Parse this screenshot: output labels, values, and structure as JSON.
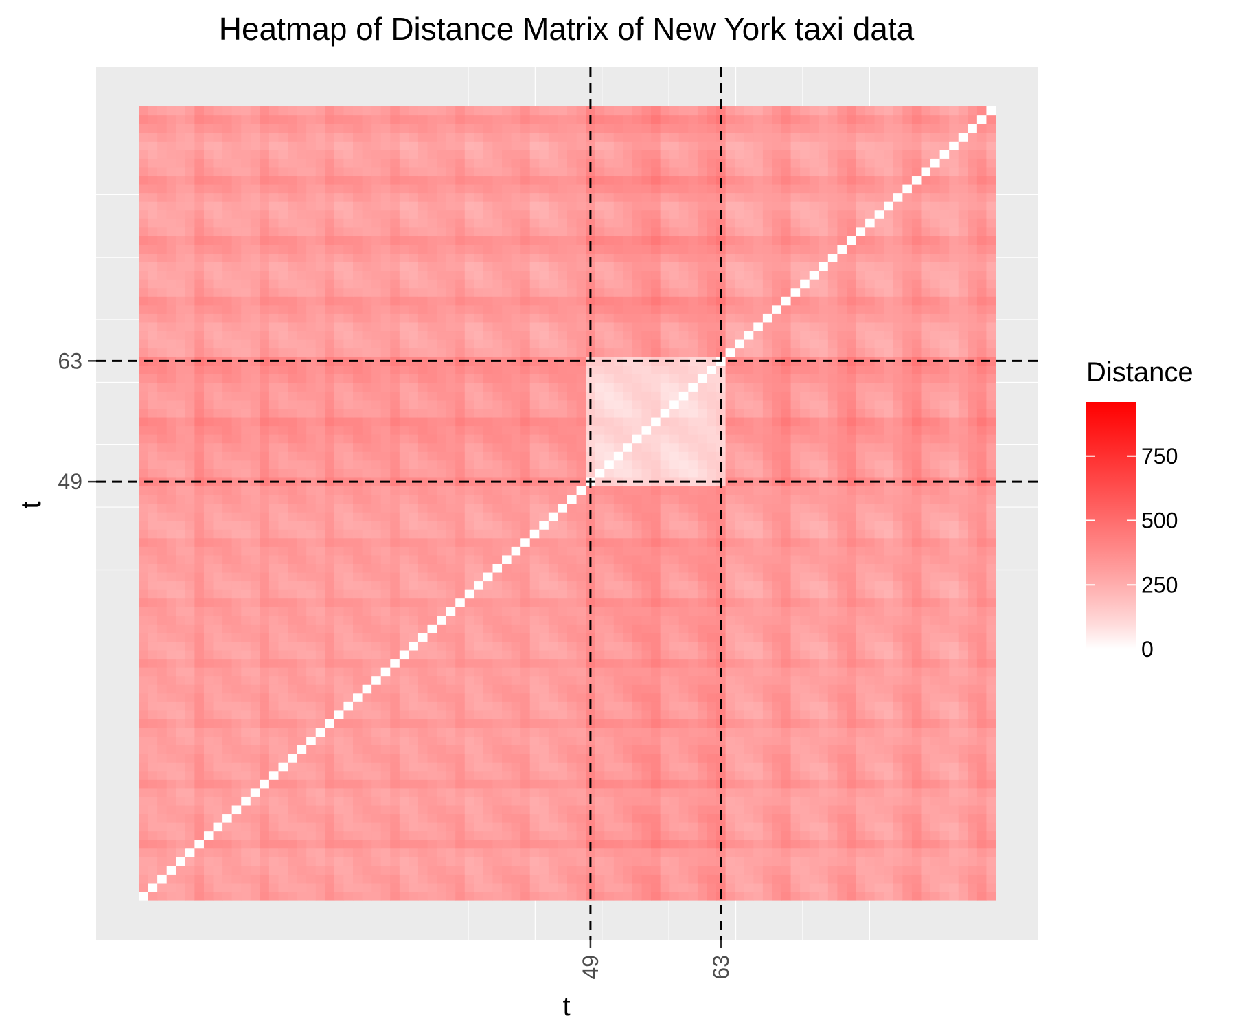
{
  "chart_data": {
    "type": "heatmap",
    "title": "Heatmap of Distance Matrix of New York taxi data",
    "xlabel": "t",
    "ylabel": "t",
    "n": 92,
    "x_ticks": [
      {
        "value": 49,
        "label": "49"
      },
      {
        "value": 63,
        "label": "63"
      }
    ],
    "y_ticks": [
      {
        "value": 49,
        "label": "49"
      },
      {
        "value": 63,
        "label": "63"
      }
    ],
    "reference_lines": {
      "x": [
        49,
        63
      ],
      "y": [
        49,
        63
      ],
      "style": "dashed"
    },
    "colorbar": {
      "title": "Distance",
      "low_color": "#ffffff",
      "high_color": "#ff0000",
      "range": [
        0,
        960
      ],
      "ticks": [
        {
          "value": 0,
          "label": "0"
        },
        {
          "value": 250,
          "label": "250"
        },
        {
          "value": 500,
          "label": "500"
        },
        {
          "value": 750,
          "label": "750"
        }
      ]
    },
    "matrix_description": "symmetric distance matrix, zero diagonal, weekly periodic banding",
    "max_value": 960,
    "panel_background": "#ebebeb",
    "gridline_color": "#ffffff",
    "line_color": "#000000"
  }
}
